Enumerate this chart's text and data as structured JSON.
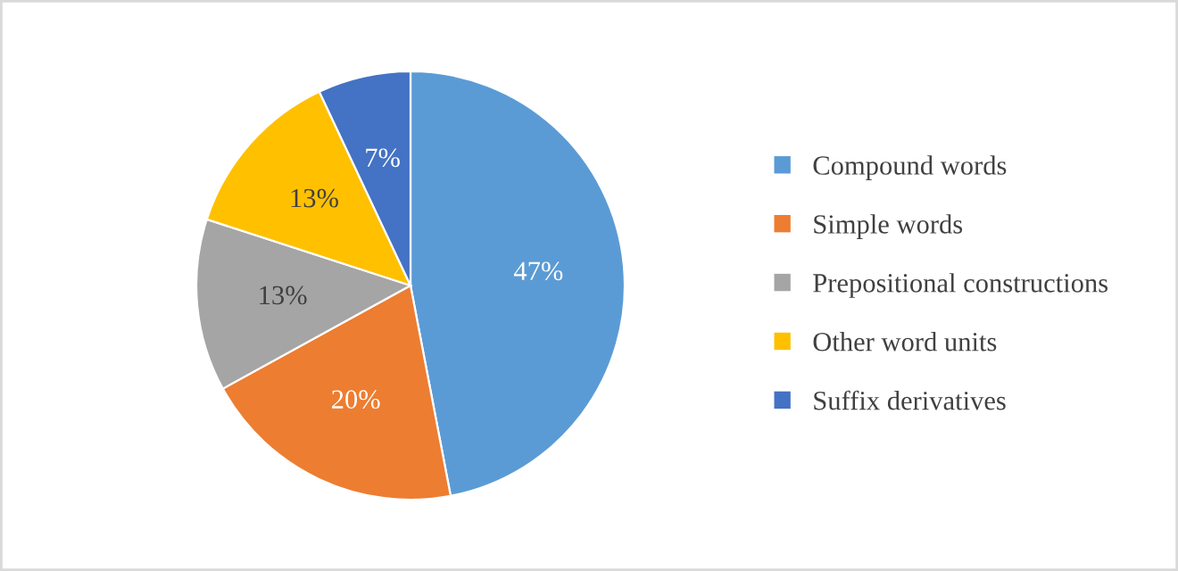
{
  "chart_data": {
    "type": "pie",
    "categories": [
      "Compound words",
      "Simple words",
      "Prepositional constructions",
      "Other word units",
      "Suffix derivatives"
    ],
    "values": [
      47,
      20,
      13,
      13,
      7
    ],
    "value_labels": [
      "47%",
      "20%",
      "13%",
      "13%",
      "7%"
    ],
    "colors": [
      "#5b9bd5",
      "#ed7d31",
      "#a5a5a5",
      "#ffc000",
      "#4472c4"
    ],
    "legend": "right"
  }
}
